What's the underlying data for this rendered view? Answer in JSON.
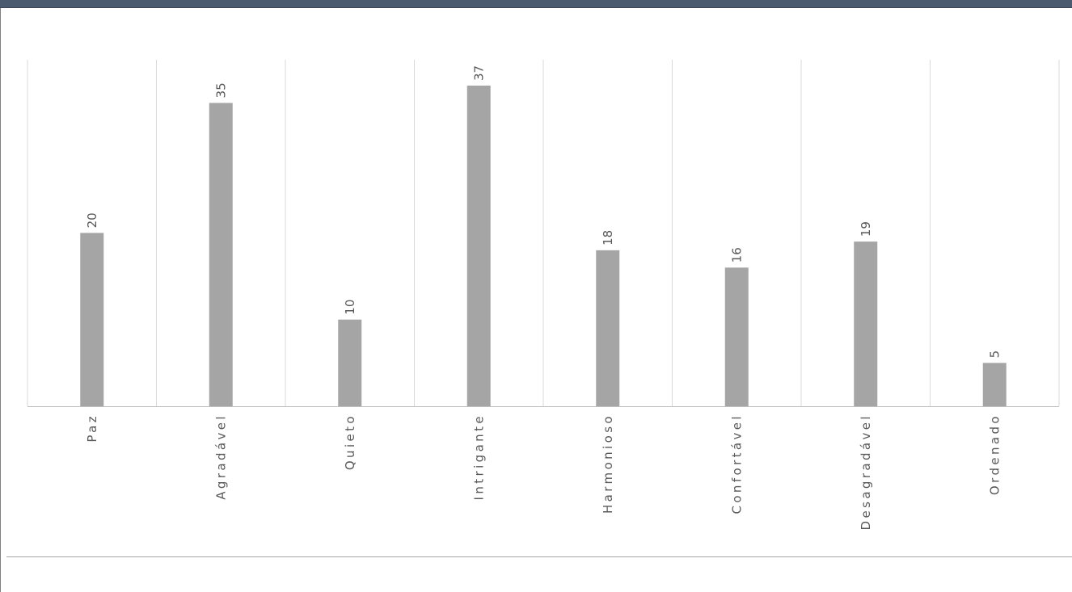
{
  "chart_data": {
    "type": "bar",
    "categories": [
      "Paz",
      "Agradável",
      "Quieto",
      "Intrigante",
      "Harmonioso",
      "Confortável",
      "Desagradável",
      "Ordenado"
    ],
    "values": [
      20,
      35,
      10,
      37,
      18,
      16,
      19,
      5
    ],
    "data_labels": [
      "20",
      "35",
      "10",
      "37",
      "18",
      "16",
      "19",
      "5"
    ],
    "title": "",
    "xlabel": "",
    "ylabel": "",
    "ylim": [
      0,
      40
    ],
    "grid": "vertical category separators",
    "legend": "none",
    "bar_color": "#a5a5a5",
    "grid_color": "#d9d9d9",
    "axis_color": "#bfbfbf",
    "label_color": "#595959"
  },
  "window": {
    "header_color": "#4b5a6e"
  }
}
